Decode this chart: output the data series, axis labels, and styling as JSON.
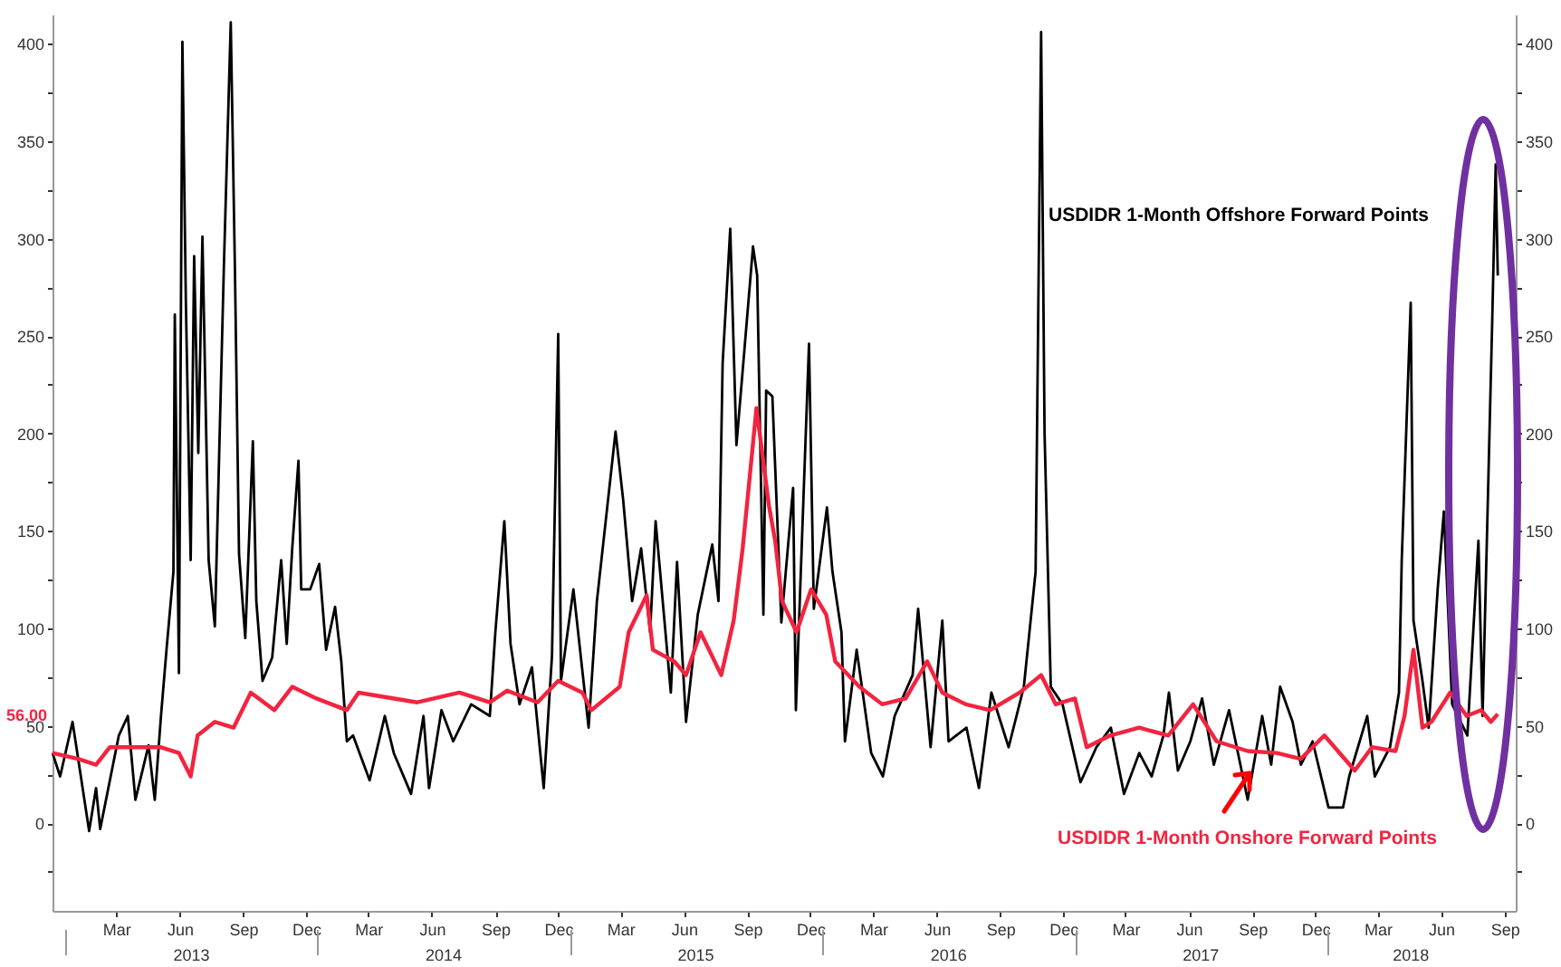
{
  "chart_data": {
    "type": "line",
    "xlim": [
      "2012-12-13",
      "2018-10-01"
    ],
    "ylim": [
      -45,
      415
    ],
    "y2lim": [
      -45,
      415
    ],
    "yticks": [
      {
        "value": -25,
        "label": null
      },
      0,
      {
        "value": 25,
        "label": null
      },
      50,
      {
        "value": 75,
        "label": null
      },
      100,
      {
        "value": 125,
        "label": null
      },
      150,
      {
        "value": 175,
        "label": null
      },
      200,
      {
        "value": 225,
        "label": null
      },
      250,
      {
        "value": 275,
        "label": null
      },
      300,
      {
        "value": 325,
        "label": null
      },
      350,
      {
        "value": 375,
        "label": null
      },
      400
    ],
    "y2ticks": [
      {
        "value": -25,
        "label": null
      },
      0,
      {
        "value": 25,
        "label": null
      },
      50,
      {
        "value": 75,
        "label": null
      },
      100,
      {
        "value": 125,
        "label": null
      },
      150,
      {
        "value": 175,
        "label": null
      },
      200,
      {
        "value": 225,
        "label": null
      },
      250,
      {
        "value": 275,
        "label": null
      },
      300,
      {
        "value": 325,
        "label": null
      },
      350,
      {
        "value": 375,
        "label": null
      },
      400
    ],
    "xticks": [
      {
        "value": "2013-03-15",
        "label": "Mar"
      },
      {
        "value": "2013-06-15",
        "label": "Jun"
      },
      {
        "value": "2013-09-15",
        "label": "Sep"
      },
      {
        "value": "2013-12-15",
        "label": "Dec"
      },
      {
        "value": "2014-03-15",
        "label": "Mar"
      },
      {
        "value": "2014-06-15",
        "label": "Jun"
      },
      {
        "value": "2014-09-15",
        "label": "Sep"
      },
      {
        "value": "2014-12-15",
        "label": "Dec"
      },
      {
        "value": "2015-03-15",
        "label": "Mar"
      },
      {
        "value": "2015-06-15",
        "label": "Jun"
      },
      {
        "value": "2015-09-15",
        "label": "Sep"
      },
      {
        "value": "2015-12-15",
        "label": "Dec"
      },
      {
        "value": "2016-03-15",
        "label": "Mar"
      },
      {
        "value": "2016-06-15",
        "label": "Jun"
      },
      {
        "value": "2016-09-15",
        "label": "Sep"
      },
      {
        "value": "2016-12-15",
        "label": "Dec"
      },
      {
        "value": "2017-03-15",
        "label": "Mar"
      },
      {
        "value": "2017-06-15",
        "label": "Jun"
      },
      {
        "value": "2017-09-15",
        "label": "Sep"
      },
      {
        "value": "2017-12-15",
        "label": "Dec"
      },
      {
        "value": "2018-03-15",
        "label": "Mar"
      },
      {
        "value": "2018-06-15",
        "label": "Jun"
      },
      {
        "value": "2018-09-15",
        "label": "Sep"
      }
    ],
    "x2lim": [
      "2012-12-13",
      "2018-10-01"
    ],
    "x2ticks": [
      {
        "value": "2013-01-01",
        "label": null
      },
      {
        "value": "2014-01-01",
        "label": null
      },
      {
        "value": "2015-01-01",
        "label": null
      },
      {
        "value": "2016-01-01",
        "label": null
      },
      {
        "value": "2017-01-01",
        "label": null
      },
      {
        "value": "2018-01-01",
        "label": null
      },
      {
        "value": "2013-07-01",
        "label": "2013"
      },
      {
        "value": "2014-07-01",
        "label": "2014"
      },
      {
        "value": "2015-07-01",
        "label": "2015"
      },
      {
        "value": "2016-07-01",
        "label": "2016"
      },
      {
        "value": "2017-07-01",
        "label": "2017"
      },
      {
        "value": "2018-05-01",
        "label": "2018"
      }
    ],
    "series": [
      {
        "name": "USDIDR 1-Month Offshore Forward Points",
        "color": "#000000",
        "x": [
          "2012-12-13",
          "2012-12-24",
          "2013-01-11",
          "2013-02-04",
          "2013-02-14",
          "2013-02-20",
          "2013-03-19",
          "2013-04-01",
          "2013-04-12",
          "2013-05-01",
          "2013-05-10",
          "2013-05-19",
          "2013-05-27",
          "2013-06-06",
          "2013-06-08",
          "2013-06-14",
          "2013-06-19",
          "2013-06-24",
          "2013-07-01",
          "2013-07-06",
          "2013-07-12",
          "2013-07-18",
          "2013-07-27",
          "2013-08-05",
          "2013-08-18",
          "2013-08-28",
          "2013-09-03",
          "2013-09-09",
          "2013-09-18",
          "2013-09-29",
          "2013-10-04",
          "2013-10-13",
          "2013-10-27",
          "2013-11-09",
          "2013-11-17",
          "2013-11-25",
          "2013-12-04",
          "2013-12-08",
          "2013-12-21",
          "2014-01-03",
          "2014-01-13",
          "2014-01-26",
          "2014-02-04",
          "2014-02-12",
          "2014-02-21",
          "2014-03-17",
          "2014-04-08",
          "2014-04-21",
          "2014-05-16",
          "2014-06-03",
          "2014-06-11",
          "2014-06-29",
          "2014-07-16",
          "2014-08-11",
          "2014-09-07",
          "2014-09-15",
          "2014-09-28",
          "2014-10-07",
          "2014-10-20",
          "2014-11-07",
          "2014-11-24",
          "2014-12-06",
          "2014-12-15",
          "2014-12-19",
          "2015-01-06",
          "2015-01-28",
          "2015-02-09",
          "2015-03-08",
          "2015-03-19",
          "2015-04-01",
          "2015-04-14",
          "2015-04-27",
          "2015-05-05",
          "2015-05-27",
          "2015-06-05",
          "2015-06-18",
          "2015-07-05",
          "2015-07-26",
          "2015-08-04",
          "2015-08-10",
          "2015-08-21",
          "2015-08-30",
          "2015-09-23",
          "2015-09-29",
          "2015-10-08",
          "2015-10-12",
          "2015-10-21",
          "2015-11-03",
          "2015-11-20",
          "2015-11-24",
          "2015-12-13",
          "2015-12-20",
          "2016-01-08",
          "2016-01-16",
          "2016-01-29",
          "2016-02-03",
          "2016-02-20",
          "2016-03-12",
          "2016-03-29",
          "2016-04-15",
          "2016-05-11",
          "2016-05-19",
          "2016-06-06",
          "2016-06-23",
          "2016-07-02",
          "2016-07-28",
          "2016-08-15",
          "2016-09-02",
          "2016-09-27",
          "2016-10-19",
          "2016-11-05",
          "2016-11-13",
          "2016-11-18",
          "2016-11-27",
          "2016-12-14",
          "2017-01-09",
          "2017-02-01",
          "2017-02-22",
          "2017-03-13",
          "2017-04-04",
          "2017-04-22",
          "2017-05-09",
          "2017-05-17",
          "2017-05-30",
          "2017-06-17",
          "2017-07-04",
          "2017-07-21",
          "2017-08-12",
          "2017-09-08",
          "2017-09-29",
          "2017-10-12",
          "2017-10-25",
          "2017-11-12",
          "2017-11-24",
          "2017-12-11",
          "2018-01-03",
          "2018-01-24",
          "2018-02-02",
          "2018-02-28",
          "2018-03-11",
          "2018-04-02",
          "2018-04-15",
          "2018-04-19",
          "2018-05-02",
          "2018-05-06",
          "2018-05-19",
          "2018-05-28",
          "2018-06-10",
          "2018-06-19",
          "2018-07-01",
          "2018-07-23",
          "2018-08-08",
          "2018-08-14",
          "2018-08-28",
          "2018-09-02",
          "2018-09-05"
        ],
        "values": [
          36,
          24,
          52,
          -4,
          18,
          -3,
          45,
          55,
          12,
          40,
          12,
          55,
          89,
          129,
          261,
          77,
          401,
          268,
          135,
          291,
          190,
          301,
          135,
          101,
          285,
          411,
          285,
          138,
          95,
          196,
          114,
          73,
          85,
          135,
          92,
          141,
          186,
          120,
          120,
          133,
          89,
          111,
          83,
          42,
          45,
          22,
          55,
          36,
          15,
          55,
          18,
          58,
          42,
          61,
          55,
          98,
          155,
          92,
          61,
          80,
          18,
          86,
          251,
          73,
          120,
          49,
          114,
          201,
          166,
          114,
          141,
          98,
          155,
          67,
          134,
          52,
          107,
          143,
          114,
          236,
          305,
          194,
          296,
          281,
          107,
          222,
          219,
          103,
          172,
          58,
          246,
          110,
          162,
          129,
          98,
          42,
          89,
          36,
          24,
          55,
          76,
          110,
          39,
          104,
          42,
          49,
          18,
          67,
          39,
          70,
          129,
          406,
          200,
          70,
          61,
          21,
          39,
          49,
          15,
          36,
          24,
          45,
          67,
          27,
          42,
          64,
          30,
          58,
          12,
          55,
          30,
          70,
          52,
          30,
          42,
          8,
          8,
          24,
          55,
          24,
          39,
          67,
          135,
          267,
          104,
          73,
          49,
          120,
          160,
          61,
          45,
          145,
          55,
          258,
          338,
          281
        ]
      },
      {
        "name": "USDIDR 1-Month Onshore Forward Points",
        "color": "#f2243f",
        "x": [
          "2012-12-13",
          "2013-01-19",
          "2013-02-14",
          "2013-03-06",
          "2013-04-14",
          "2013-05-18",
          "2013-06-14",
          "2013-07-01",
          "2013-07-11",
          "2013-08-05",
          "2013-09-01",
          "2013-09-26",
          "2013-10-30",
          "2013-11-25",
          "2013-12-30",
          "2014-02-12",
          "2014-03-01",
          "2014-05-25",
          "2014-07-25",
          "2014-09-07",
          "2014-10-02",
          "2014-11-15",
          "2014-12-15",
          "2015-01-19",
          "2015-02-01",
          "2015-03-14",
          "2015-03-27",
          "2015-04-22",
          "2015-05-01",
          "2015-06-01",
          "2015-06-18",
          "2015-07-09",
          "2015-08-08",
          "2015-08-26",
          "2015-09-08",
          "2015-09-28",
          "2015-10-16",
          "2015-10-25",
          "2015-11-04",
          "2015-11-25",
          "2015-12-16",
          "2016-01-07",
          "2016-01-20",
          "2016-02-24",
          "2016-03-28",
          "2016-05-01",
          "2016-06-01",
          "2016-06-23",
          "2016-07-27",
          "2016-08-31",
          "2016-10-13",
          "2016-11-13",
          "2016-12-04",
          "2017-01-01",
          "2017-01-18",
          "2017-02-21",
          "2017-04-04",
          "2017-05-16",
          "2017-06-21",
          "2017-07-25",
          "2017-09-08",
          "2017-10-20",
          "2017-11-24",
          "2017-12-28",
          "2018-02-10",
          "2018-03-07",
          "2018-04-10",
          "2018-04-23",
          "2018-05-06",
          "2018-05-19",
          "2018-06-01",
          "2018-06-28",
          "2018-07-22",
          "2018-08-12",
          "2018-08-26",
          "2018-09-05"
        ],
        "values": [
          36,
          33,
          30,
          39,
          39,
          39,
          36,
          24,
          45,
          52,
          49,
          67,
          58,
          70,
          64,
          58,
          67,
          62,
          67,
          62,
          68,
          62,
          73,
          67,
          58,
          70,
          98,
          117,
          89,
          83,
          76,
          98,
          76,
          104,
          141,
          213,
          163,
          145,
          114,
          98,
          120,
          107,
          83,
          70,
          61,
          64,
          83,
          67,
          61,
          58,
          67,
          76,
          61,
          64,
          39,
          45,
          49,
          45,
          61,
          42,
          37,
          36,
          33,
          45,
          27,
          39,
          37,
          55,
          89,
          49,
          52,
          67,
          55,
          58,
          52,
          56
        ]
      }
    ],
    "annotations": [
      "56.00"
    ]
  }
}
